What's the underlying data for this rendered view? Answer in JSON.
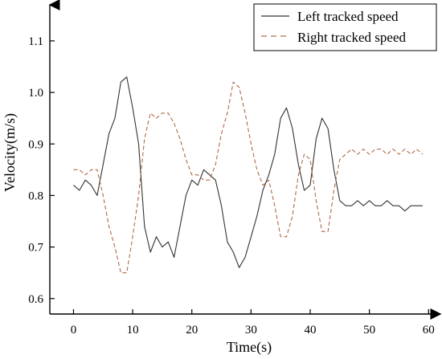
{
  "chart_data": {
    "type": "line",
    "xlabel": "Time(s)",
    "ylabel": "Velocity(m/s)",
    "xlim": [
      -4,
      62
    ],
    "ylim": [
      0.57,
      1.17
    ],
    "xticks": [
      0,
      10,
      20,
      30,
      40,
      50,
      60
    ],
    "yticks": [
      0.6,
      0.7,
      0.8,
      0.9,
      1.0,
      1.1
    ],
    "xtick_labels": [
      "0",
      "10",
      "20",
      "30",
      "40",
      "50",
      "60"
    ],
    "ytick_labels": [
      "0.6",
      "0.7",
      "0.8",
      "0.9",
      "1.0",
      "1.1"
    ],
    "grid": false,
    "legend_position": "top-right",
    "series": [
      {
        "name": "Left tracked speed",
        "color": "#333333",
        "dash": "solid",
        "x": [
          0,
          1,
          2,
          3,
          4,
          5,
          6,
          7,
          8,
          9,
          10,
          11,
          12,
          13,
          14,
          15,
          16,
          17,
          18,
          19,
          20,
          21,
          22,
          23,
          24,
          25,
          26,
          27,
          28,
          29,
          30,
          31,
          32,
          33,
          34,
          35,
          36,
          37,
          38,
          39,
          40,
          41,
          42,
          43,
          44,
          45,
          46,
          47,
          48,
          49,
          50,
          51,
          52,
          53,
          54,
          55,
          56,
          57,
          58,
          59
        ],
        "values": [
          0.82,
          0.81,
          0.83,
          0.82,
          0.8,
          0.86,
          0.92,
          0.95,
          1.02,
          1.03,
          0.97,
          0.9,
          0.74,
          0.69,
          0.72,
          0.7,
          0.71,
          0.68,
          0.74,
          0.8,
          0.83,
          0.82,
          0.85,
          0.84,
          0.83,
          0.78,
          0.71,
          0.69,
          0.66,
          0.68,
          0.72,
          0.76,
          0.81,
          0.84,
          0.88,
          0.95,
          0.97,
          0.93,
          0.86,
          0.81,
          0.82,
          0.91,
          0.95,
          0.93,
          0.85,
          0.79,
          0.78,
          0.78,
          0.79,
          0.78,
          0.79,
          0.78,
          0.78,
          0.79,
          0.78,
          0.78,
          0.77,
          0.78,
          0.78,
          0.78
        ]
      },
      {
        "name": "Right tracked speed",
        "color": "#b06a4a",
        "dash": "dashed",
        "x": [
          0,
          1,
          2,
          3,
          4,
          5,
          6,
          7,
          8,
          9,
          10,
          11,
          12,
          13,
          14,
          15,
          16,
          17,
          18,
          19,
          20,
          21,
          22,
          23,
          24,
          25,
          26,
          27,
          28,
          29,
          30,
          31,
          32,
          33,
          34,
          35,
          36,
          37,
          38,
          39,
          40,
          41,
          42,
          43,
          44,
          45,
          46,
          47,
          48,
          49,
          50,
          51,
          52,
          53,
          54,
          55,
          56,
          57,
          58,
          59
        ],
        "values": [
          0.85,
          0.85,
          0.84,
          0.85,
          0.85,
          0.8,
          0.74,
          0.7,
          0.65,
          0.65,
          0.72,
          0.8,
          0.91,
          0.96,
          0.95,
          0.96,
          0.96,
          0.94,
          0.91,
          0.87,
          0.84,
          0.84,
          0.83,
          0.83,
          0.86,
          0.92,
          0.96,
          1.02,
          1.01,
          0.96,
          0.9,
          0.85,
          0.82,
          0.83,
          0.78,
          0.72,
          0.72,
          0.76,
          0.84,
          0.88,
          0.87,
          0.79,
          0.73,
          0.73,
          0.81,
          0.87,
          0.88,
          0.89,
          0.88,
          0.89,
          0.88,
          0.89,
          0.89,
          0.88,
          0.89,
          0.88,
          0.89,
          0.88,
          0.89,
          0.88
        ]
      }
    ]
  }
}
